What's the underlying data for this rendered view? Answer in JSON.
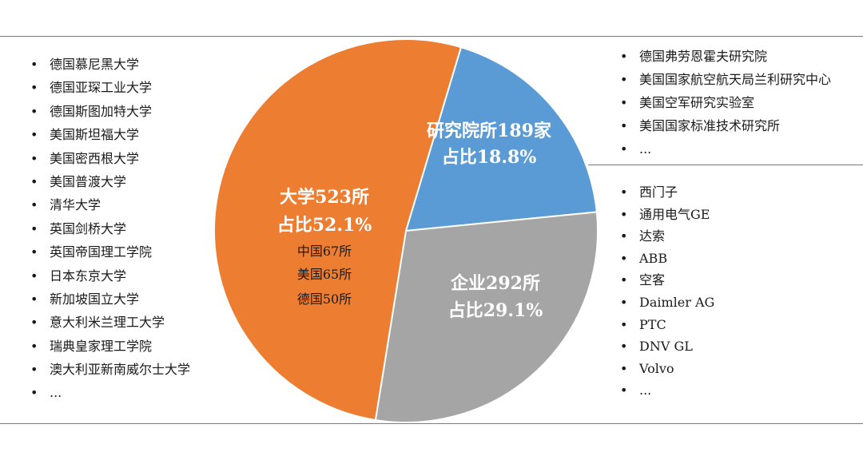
{
  "chart_data": {
    "type": "pie",
    "slices": [
      {
        "category": "研究院所",
        "count": "189家",
        "share": 18.8,
        "label": "研究院所189家",
        "share_label": "占比18.8%",
        "color": "#5b9bd5"
      },
      {
        "category": "企业",
        "count": "292所",
        "share": 29.1,
        "label": "企业292所",
        "share_label": "占比29.1%",
        "color": "#a5a5a5"
      },
      {
        "category": "大学",
        "count": "523所",
        "share": 52.1,
        "label": "大学523所",
        "share_label": "占比52.1%",
        "color": "#ed7d31",
        "breakdown": [
          "中国67所",
          "美国65所",
          "德国50所"
        ]
      }
    ]
  },
  "lists": {
    "universities": [
      "德国慕尼黑大学",
      "德国亚琛工业大学",
      "德国斯图加特大学",
      "美国斯坦福大学",
      "美国密西根大学",
      "美国普渡大学",
      "清华大学",
      "英国剑桥大学",
      "英国帝国理工学院",
      "日本东京大学",
      "新加坡国立大学",
      "意大利米兰理工大学",
      "瑞典皇家理工学院",
      "澳大利亚新南威尔士大学",
      "..."
    ],
    "institutes": [
      "德国弗劳恩霍夫研究院",
      "美国国家航空航天局兰利研究中心",
      "美国空军研究实验室",
      "美国国家标准技术研究所",
      "..."
    ],
    "companies": [
      "西门子",
      "通用电气GE",
      "达索",
      "ABB",
      "空客",
      "Daimler AG",
      "PTC",
      "DNV GL",
      "Volvo",
      "..."
    ]
  }
}
